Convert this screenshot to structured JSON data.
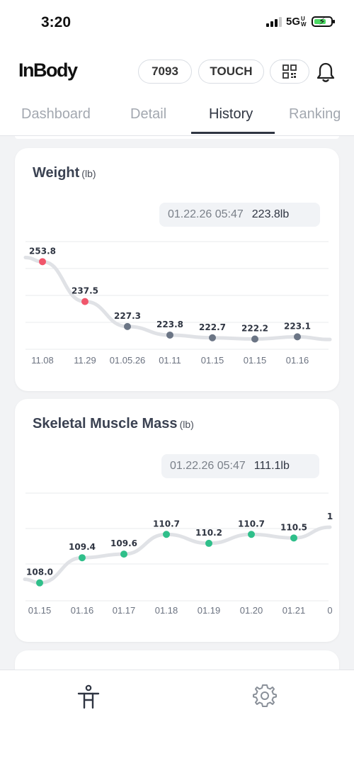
{
  "status_bar": {
    "time": "3:20",
    "network": "5G",
    "network_suffix": "UW"
  },
  "header": {
    "logo": "InBody",
    "member_code": "7093",
    "touch_label": "TOUCH",
    "qr_icon": "qr-code-icon",
    "bell_icon": "bell-icon"
  },
  "tabs": [
    {
      "label": "Dashboard",
      "active": false
    },
    {
      "label": "Detail",
      "active": false
    },
    {
      "label": "History",
      "active": true
    },
    {
      "label": "Ranking",
      "active": false
    }
  ],
  "colors": {
    "accent_text": "#2f3542",
    "weight_high": "#f0566b",
    "weight_normal": "#6b7585",
    "muscle": "#2fbf8a",
    "line": "#e0e2e6"
  },
  "cards": {
    "weight": {
      "title": "Weight",
      "unit": "(lb)",
      "latest_date": "01.22.26 05:47",
      "latest_value": "223.8lb"
    },
    "smm": {
      "title": "Skeletal Muscle Mass",
      "unit": "(lb)",
      "latest_date": "01.22.26 05:47",
      "latest_value": "111.1lb"
    }
  },
  "chart_data": [
    {
      "type": "line",
      "title": "Weight",
      "ylabel": "",
      "categories": [
        "",
        "11.08",
        "11.29",
        "01.05.26",
        "01.11",
        "01.15",
        "01.15",
        "01.16",
        ""
      ],
      "series": [
        {
          "name": "",
          "values": [
            255.5,
            253.8,
            237.5,
            227.3,
            223.8,
            222.7,
            222.2,
            223.1,
            222.0
          ],
          "labels": [
            "",
            "253.8",
            "237.5",
            "227.3",
            "223.8",
            "222.7",
            "222.2",
            "223.1",
            ""
          ],
          "point_colors": [
            "",
            "#f0566b",
            "#f0566b",
            "#6b7585",
            "#6b7585",
            "#6b7585",
            "#6b7585",
            "#6b7585",
            ""
          ]
        }
      ],
      "grid": true,
      "ylim": [
        218,
        262
      ]
    },
    {
      "type": "line",
      "title": "Skeletal Muscle Mass",
      "ylabel": "",
      "categories": [
        "",
        "01.15",
        "01.16",
        "01.17",
        "01.18",
        "01.19",
        "01.20",
        "01.21",
        "0"
      ],
      "series": [
        {
          "name": "",
          "values": [
            108.2,
            108.0,
            109.4,
            109.6,
            110.7,
            110.2,
            110.7,
            110.5,
            111.1
          ],
          "labels": [
            "",
            "108.0",
            "109.4",
            "109.6",
            "110.7",
            "110.2",
            "110.7",
            "110.5",
            "1"
          ],
          "point_colors": [
            "",
            "#2fbf8a",
            "#2fbf8a",
            "#2fbf8a",
            "#2fbf8a",
            "#2fbf8a",
            "#2fbf8a",
            "#2fbf8a",
            ""
          ]
        }
      ],
      "grid": true,
      "ylim": [
        107,
        113
      ]
    }
  ],
  "bottom_nav": [
    {
      "icon": "body-figure-icon"
    },
    {
      "icon": "gear-icon"
    }
  ]
}
